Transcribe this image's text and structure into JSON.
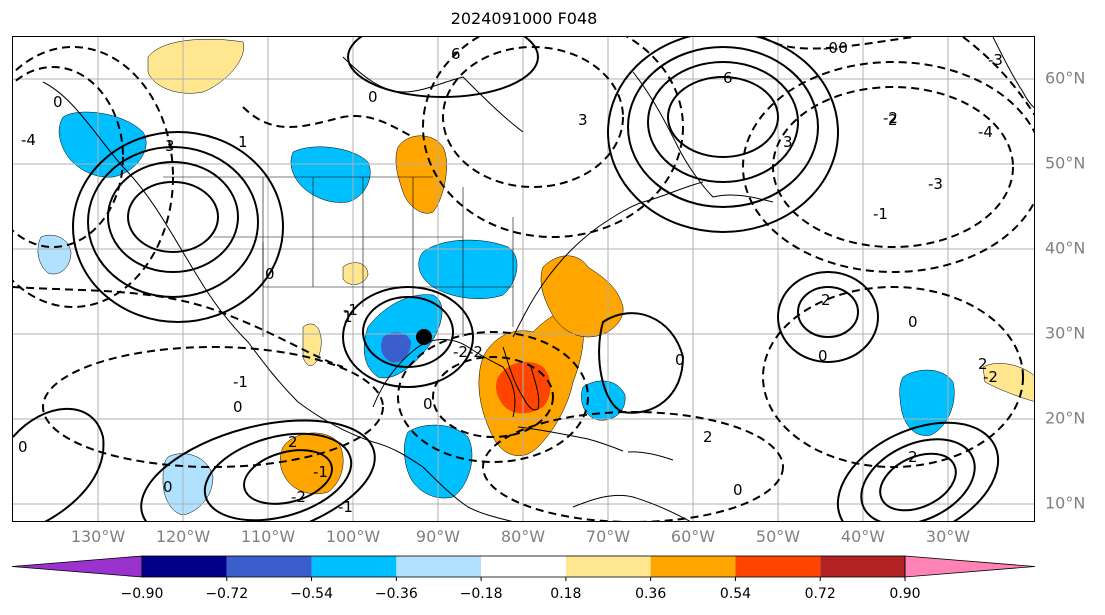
{
  "title": "2024091000 F048",
  "longitude_labels": [
    "130°W",
    "120°W",
    "110°W",
    "100°W",
    "90°W",
    "80°W",
    "70°W",
    "60°W",
    "50°W",
    "40°W",
    "30°W"
  ],
  "latitude_labels": [
    "60°N",
    "50°N",
    "40°N",
    "30°N",
    "20°N",
    "10°N"
  ],
  "colorbar": {
    "tick_labels": [
      "−0.90",
      "−0.72",
      "−0.54",
      "−0.36",
      "−0.18",
      "0.18",
      "0.36",
      "0.54",
      "0.72",
      "0.90"
    ],
    "colors": [
      "#9a32cd",
      "#00008b",
      "#3a5fcd",
      "#00bfff",
      "#b0e2ff",
      "#ffffff",
      "#ffe68f",
      "#ffa500",
      "#ff4500",
      "#b22222",
      "#ff83b4"
    ]
  },
  "contour_labels": [
    "6",
    "6",
    "3",
    "3",
    "3",
    "2",
    "2",
    "2",
    "1",
    "0",
    "0",
    "0",
    "0",
    "0",
    "-0",
    "-3",
    "-4",
    "-1",
    "-2",
    "-4",
    "-3",
    "-2",
    "-1",
    "-2",
    "-1",
    "0",
    "2",
    "-1",
    "0",
    "0",
    "-1",
    "-2",
    "0",
    "0",
    "-0",
    "2",
    "2",
    "0",
    "-2",
    "1"
  ],
  "marker": {
    "name": "storm-center-marker",
    "color": "#000000"
  }
}
